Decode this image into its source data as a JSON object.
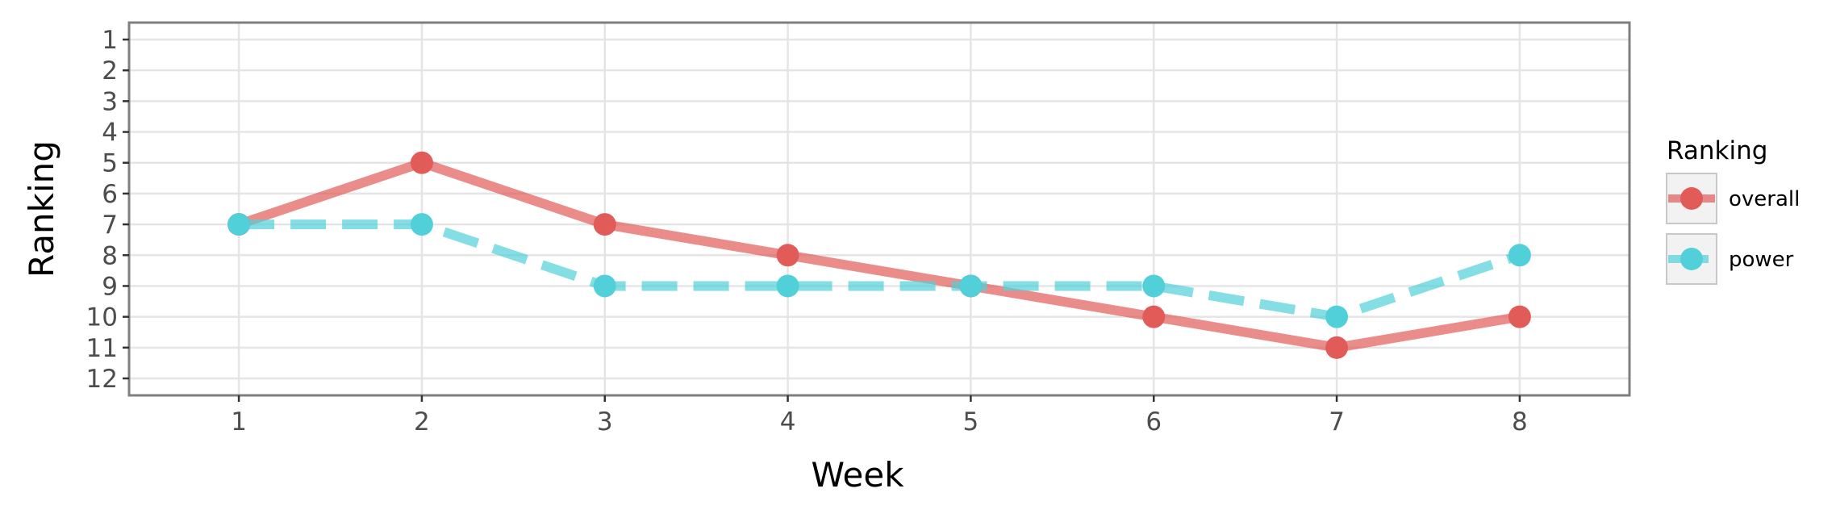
{
  "chart_data": {
    "type": "line",
    "title": "",
    "xlabel": "Week",
    "ylabel": "Ranking",
    "x": [
      1,
      2,
      3,
      4,
      5,
      6,
      7,
      8
    ],
    "xlim": [
      0.4,
      8.6
    ],
    "ylim": [
      12.55,
      0.45
    ],
    "y_reversed": true,
    "x_ticks": [
      "1",
      "2",
      "3",
      "4",
      "5",
      "6",
      "7",
      "8"
    ],
    "y_ticks": [
      "1",
      "2",
      "3",
      "4",
      "5",
      "6",
      "7",
      "8",
      "9",
      "10",
      "11",
      "12"
    ],
    "grid": true,
    "legend": {
      "title": "Ranking",
      "placement": "right"
    },
    "series": [
      {
        "name": "overall",
        "values": [
          7,
          5,
          7,
          8,
          9,
          10,
          11,
          10
        ],
        "color": "#e15c58",
        "line_style": "solid"
      },
      {
        "name": "power",
        "values": [
          7,
          7,
          9,
          9,
          9,
          9,
          10,
          8
        ],
        "color": "#52d0da",
        "line_style": "dashed"
      }
    ]
  }
}
